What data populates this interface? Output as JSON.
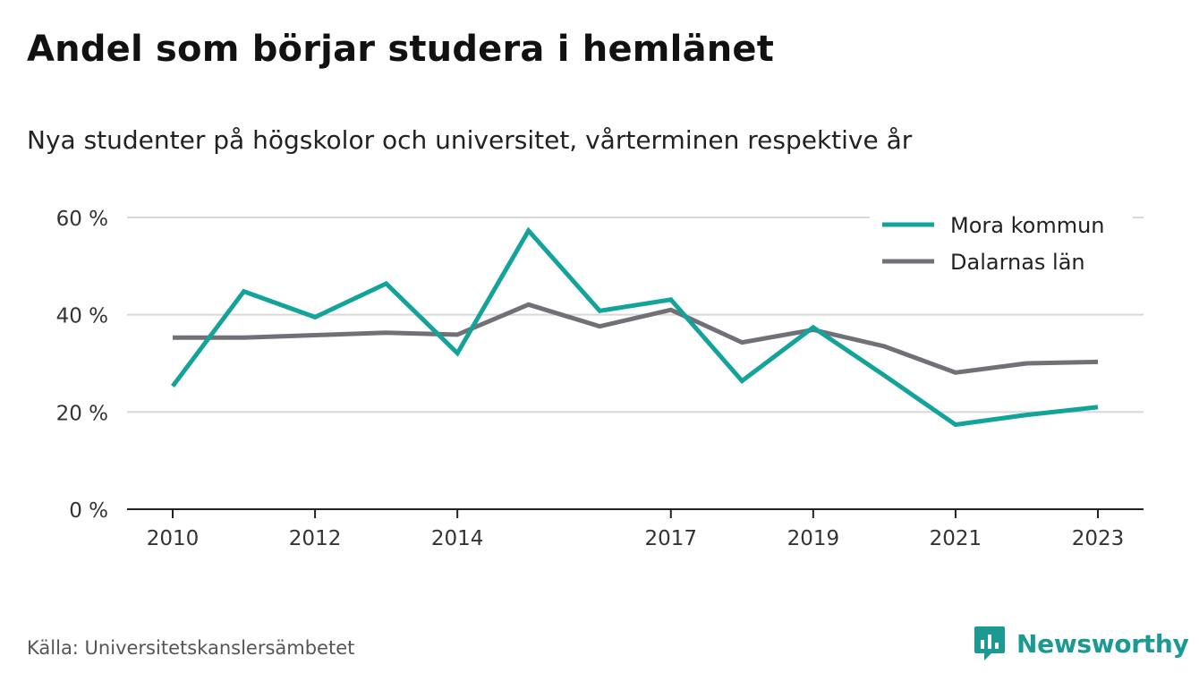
{
  "title": "Andel som börjar studera i hemlänet",
  "subtitle": "Nya studenter på högskolor och universitet, vårterminen respektive år",
  "source": "Källa: Universitetskanslersämbetet",
  "brand": "Newsworthy",
  "colors": {
    "mora": "#14a39a",
    "dalarna": "#717077",
    "grid": "#d8d8d8",
    "axis": "#222222",
    "brand": "#1a9a92"
  },
  "chart_data": {
    "type": "line",
    "x": [
      2010,
      2011,
      2012,
      2013,
      2014,
      2015,
      2016,
      2017,
      2018,
      2019,
      2020,
      2021,
      2022,
      2023
    ],
    "x_tick_labels": [
      "2010",
      "2012",
      "2014",
      "2017",
      "2019",
      "2021",
      "2023"
    ],
    "x_tick_values": [
      2010,
      2012,
      2014,
      2017,
      2019,
      2021,
      2023
    ],
    "y_tick_labels": [
      "0 %",
      "20 %",
      "40 %",
      "60 %"
    ],
    "y_tick_values": [
      0,
      20,
      40,
      60
    ],
    "ylim": [
      0,
      60
    ],
    "xlim": [
      2010,
      2023
    ],
    "grid": true,
    "legend_position": "top-right",
    "series": [
      {
        "name": "Mora kommun",
        "color": "#14a39a",
        "values": [
          25.3,
          44.8,
          39.5,
          46.4,
          32.1,
          57.3,
          40.8,
          43.1,
          26.4,
          37.4,
          27.5,
          17.4,
          19.4,
          21.0
        ]
      },
      {
        "name": "Dalarnas län",
        "color": "#717077",
        "values": [
          35.3,
          35.3,
          35.8,
          36.3,
          35.9,
          42.1,
          37.6,
          41.0,
          34.3,
          36.9,
          33.5,
          28.1,
          30.0,
          30.3
        ]
      }
    ]
  }
}
